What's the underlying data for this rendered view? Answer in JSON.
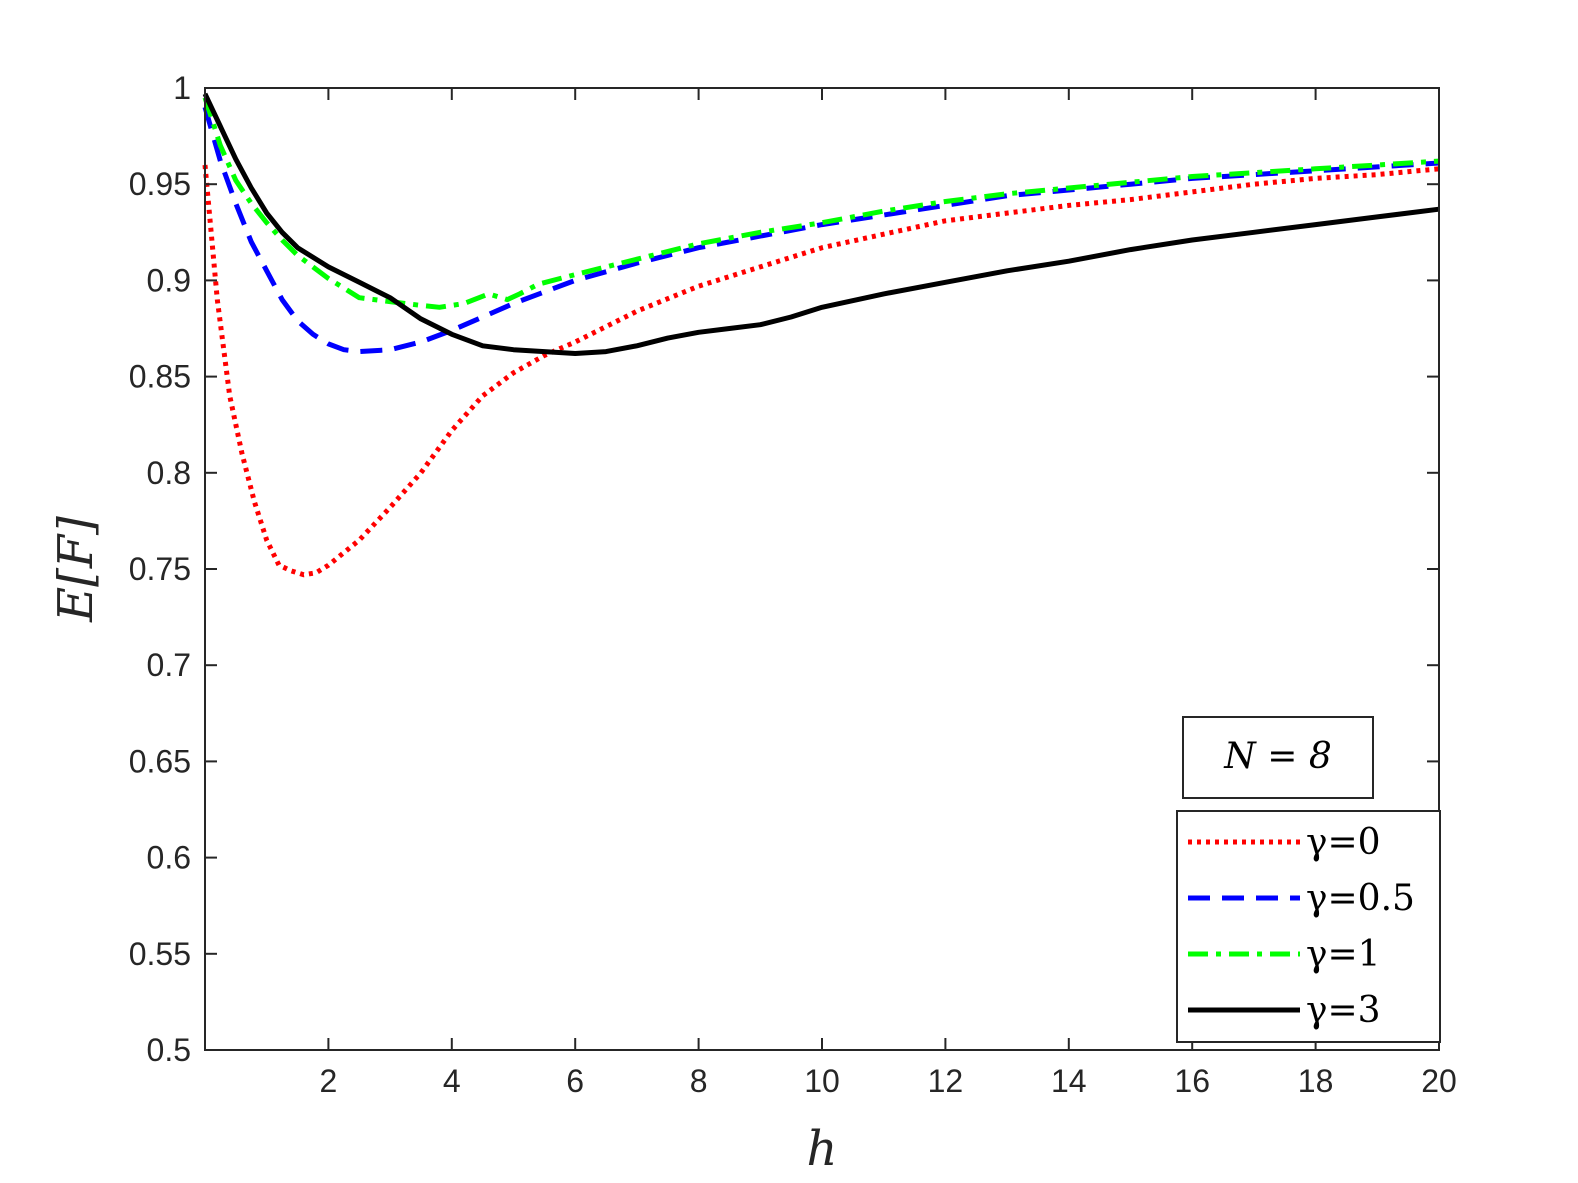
{
  "chart_data": {
    "type": "line",
    "title": "",
    "xlabel": "h",
    "ylabel": "E[F]",
    "xlim": [
      0,
      20
    ],
    "ylim": [
      0.5,
      1
    ],
    "xticks": [
      2,
      4,
      6,
      8,
      10,
      12,
      14,
      16,
      18,
      20
    ],
    "yticks": [
      0.5,
      0.55,
      0.6,
      0.65,
      0.7,
      0.75,
      0.8,
      0.85,
      0.9,
      0.95,
      1
    ],
    "xtick_labels": [
      "2",
      "4",
      "6",
      "8",
      "10",
      "12",
      "14",
      "16",
      "18",
      "20"
    ],
    "ytick_labels": [
      "0.5",
      "0.55",
      "0.6",
      "0.65",
      "0.7",
      "0.75",
      "0.8",
      "0.85",
      "0.9",
      "0.95",
      "1"
    ],
    "grid": false,
    "legend_position": "bottom-right",
    "annotation": "N = 8",
    "series": [
      {
        "name": "γ=0",
        "color": "#ff0000",
        "style": "dotted",
        "x": [
          0.0,
          0.2,
          0.4,
          0.6,
          0.8,
          1.0,
          1.2,
          1.4,
          1.6,
          1.8,
          2.0,
          2.5,
          3.0,
          3.5,
          4.0,
          4.5,
          5.0,
          5.5,
          6.0,
          7.0,
          8.0,
          9.0,
          10.0,
          11.0,
          12.0,
          13.0,
          14.0,
          15.0,
          16.0,
          17.0,
          18.0,
          19.0,
          20.0
        ],
        "y": [
          0.96,
          0.89,
          0.84,
          0.81,
          0.785,
          0.765,
          0.752,
          0.749,
          0.747,
          0.748,
          0.752,
          0.765,
          0.782,
          0.8,
          0.822,
          0.84,
          0.852,
          0.861,
          0.868,
          0.884,
          0.897,
          0.907,
          0.917,
          0.924,
          0.931,
          0.935,
          0.939,
          0.942,
          0.946,
          0.95,
          0.953,
          0.955,
          0.958
        ]
      },
      {
        "name": "γ=0.5",
        "color": "#0000ff",
        "style": "dashed",
        "x": [
          0.0,
          0.25,
          0.5,
          0.75,
          1.0,
          1.25,
          1.5,
          1.75,
          2.0,
          2.25,
          2.5,
          3.0,
          3.5,
          4.0,
          4.5,
          5.0,
          5.5,
          6.0,
          7.0,
          8.0,
          9.0,
          10.0,
          11.0,
          12.0,
          13.0,
          14.0,
          15.0,
          16.0,
          17.0,
          18.0,
          19.0,
          20.0
        ],
        "y": [
          0.99,
          0.962,
          0.94,
          0.92,
          0.905,
          0.89,
          0.879,
          0.872,
          0.867,
          0.864,
          0.863,
          0.864,
          0.868,
          0.874,
          0.881,
          0.888,
          0.894,
          0.9,
          0.909,
          0.917,
          0.923,
          0.929,
          0.934,
          0.939,
          0.944,
          0.947,
          0.95,
          0.953,
          0.955,
          0.957,
          0.959,
          0.961
        ]
      },
      {
        "name": "γ=1",
        "color": "#00ff00",
        "style": "dashdot",
        "x": [
          0.0,
          0.25,
          0.5,
          0.75,
          1.0,
          1.25,
          1.5,
          2.0,
          2.5,
          3.0,
          3.5,
          3.8,
          4.2,
          4.6,
          4.9,
          5.1,
          5.4,
          6.0,
          7.0,
          8.0,
          9.0,
          10.0,
          11.0,
          12.0,
          13.0,
          14.0,
          15.0,
          16.0,
          17.0,
          18.0,
          19.0,
          20.0
        ],
        "y": [
          0.995,
          0.97,
          0.952,
          0.94,
          0.93,
          0.921,
          0.913,
          0.901,
          0.891,
          0.889,
          0.887,
          0.886,
          0.888,
          0.893,
          0.89,
          0.893,
          0.898,
          0.903,
          0.911,
          0.919,
          0.925,
          0.93,
          0.936,
          0.941,
          0.945,
          0.948,
          0.951,
          0.954,
          0.956,
          0.958,
          0.96,
          0.962
        ]
      },
      {
        "name": "γ=3",
        "color": "#000000",
        "style": "solid",
        "x": [
          0.0,
          0.25,
          0.5,
          0.75,
          1.0,
          1.25,
          1.5,
          2.0,
          2.5,
          3.0,
          3.5,
          4.0,
          4.5,
          5.0,
          5.5,
          6.0,
          6.5,
          7.0,
          7.5,
          8.0,
          8.5,
          9.0,
          9.5,
          10.0,
          11.0,
          12.0,
          13.0,
          14.0,
          15.0,
          16.0,
          17.0,
          18.0,
          19.0,
          20.0
        ],
        "y": [
          0.997,
          0.98,
          0.963,
          0.948,
          0.935,
          0.925,
          0.917,
          0.907,
          0.899,
          0.891,
          0.88,
          0.872,
          0.866,
          0.864,
          0.863,
          0.862,
          0.863,
          0.866,
          0.87,
          0.873,
          0.875,
          0.877,
          0.881,
          0.886,
          0.893,
          0.899,
          0.905,
          0.91,
          0.916,
          0.921,
          0.925,
          0.929,
          0.933,
          0.937
        ]
      }
    ]
  }
}
